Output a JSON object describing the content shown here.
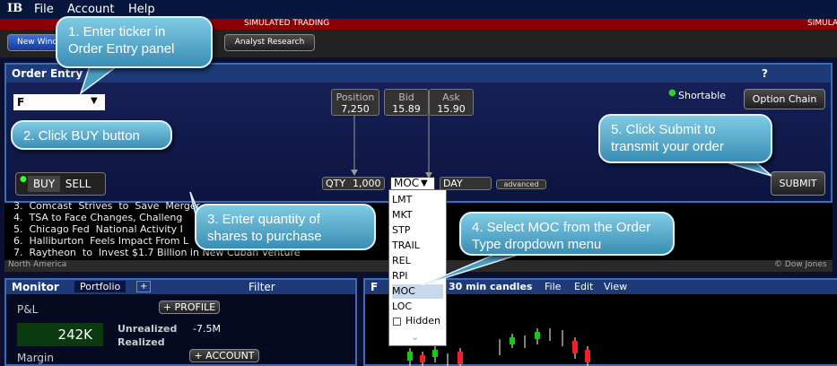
{
  "menu": {
    "logo": "IB",
    "items": [
      "File",
      "Account",
      "Help"
    ]
  },
  "banner": [
    "SIMULATED TRADING",
    "SIMULATED TRADING"
  ],
  "toolbar": {
    "new_window": "New Window",
    "analyst": "Analyst Research"
  },
  "order_entry": {
    "title": "Order Entry",
    "help": "?",
    "ticker": "F",
    "position_label": "Position",
    "position": "7,250",
    "bid_label": "Bid",
    "bid": "15.89",
    "ask_label": "Ask",
    "ask": "15.90",
    "shortable": "Shortable",
    "option_chain": "Option Chain",
    "buy": "BUY",
    "sell": "SELL",
    "qty_label": "QTY",
    "qty": "1,000",
    "order_type": "MOC",
    "tif": "DAY",
    "advanced": "advanced",
    "submit": "SUBMIT"
  },
  "order_type_menu": {
    "items": [
      "LMT",
      "MKT",
      "STP",
      "TRAIL",
      "REL",
      "RPI",
      "MOC",
      "LOC"
    ],
    "selected": 6,
    "hidden": "Hidden"
  },
  "news": {
    "items": [
      "3.  Comcast  Strives  to  Save  Merger",
      "4.  TSA to Face Changes, Challeng",
      "5.  Chicago Fed  National Activity I",
      "6.  Halliburton  Feels Impact From L",
      "7.  Raytheon  to  Invest $1.7 Billion in New Cuban Venture"
    ],
    "region": "North America",
    "source": "© Dow Jones"
  },
  "monitor": {
    "title": "Monitor",
    "tab": "Portfolio",
    "add": "+",
    "filter": "Filter",
    "pnl": "P&L",
    "profile": "+ PROFILE",
    "daily": "242K",
    "unrealized": "Unrealized",
    "unrealized_value": "-7.5M",
    "realized": "Realized",
    "margin": "Margin",
    "account": "+ ACCOUNT"
  },
  "chart_window": {
    "symbol": "F",
    "period": "30 min candles",
    "menu": [
      "File",
      "Edit",
      "View"
    ]
  },
  "callouts": [
    "1. Enter ticker in Order Entry panel",
    "2. Click BUY button",
    "3. Enter quantity of shares to purchase",
    "4. Select MOC from the Order Type dropdown menu",
    "5. Click Submit to transmit your order"
  ]
}
